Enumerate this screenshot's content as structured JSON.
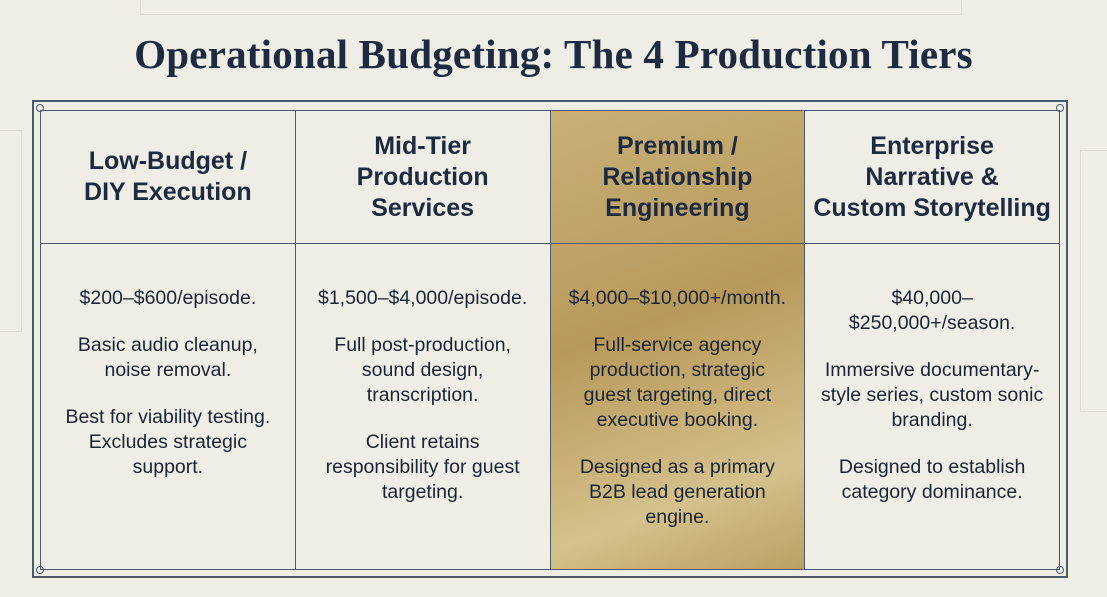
{
  "title": "Operational Budgeting: The 4 Production Tiers",
  "table": {
    "columns": [
      {
        "header": [
          "Low-Budget /",
          "DIY Execution"
        ],
        "price": "$200–$600/episode.",
        "paragraphs": [
          "Basic audio cleanup, noise removal.",
          "Best for viability testing. Excludes strategic support."
        ]
      },
      {
        "header": [
          "Mid-Tier",
          "Production",
          "Services"
        ],
        "price": "$1,500–$4,000/episode.",
        "paragraphs": [
          "Full post-production, sound design, transcription.",
          "Client retains responsibility for guest targeting."
        ]
      },
      {
        "header": [
          "Premium /",
          "Relationship",
          "Engineering"
        ],
        "price": "$4,000–$10,000+/month.",
        "paragraphs": [
          "Full-service agency production, strategic guest targeting, direct executive booking.",
          "Designed as a primary B2B lead generation engine."
        ],
        "highlighted": true
      },
      {
        "header": [
          "Enterprise",
          "Narrative &",
          "Custom Storytelling"
        ],
        "price": "$40,000–$250,000+/season.",
        "paragraphs": [
          "Immersive documentary-style series, custom sonic branding.",
          "Designed to establish category dominance."
        ]
      }
    ]
  }
}
